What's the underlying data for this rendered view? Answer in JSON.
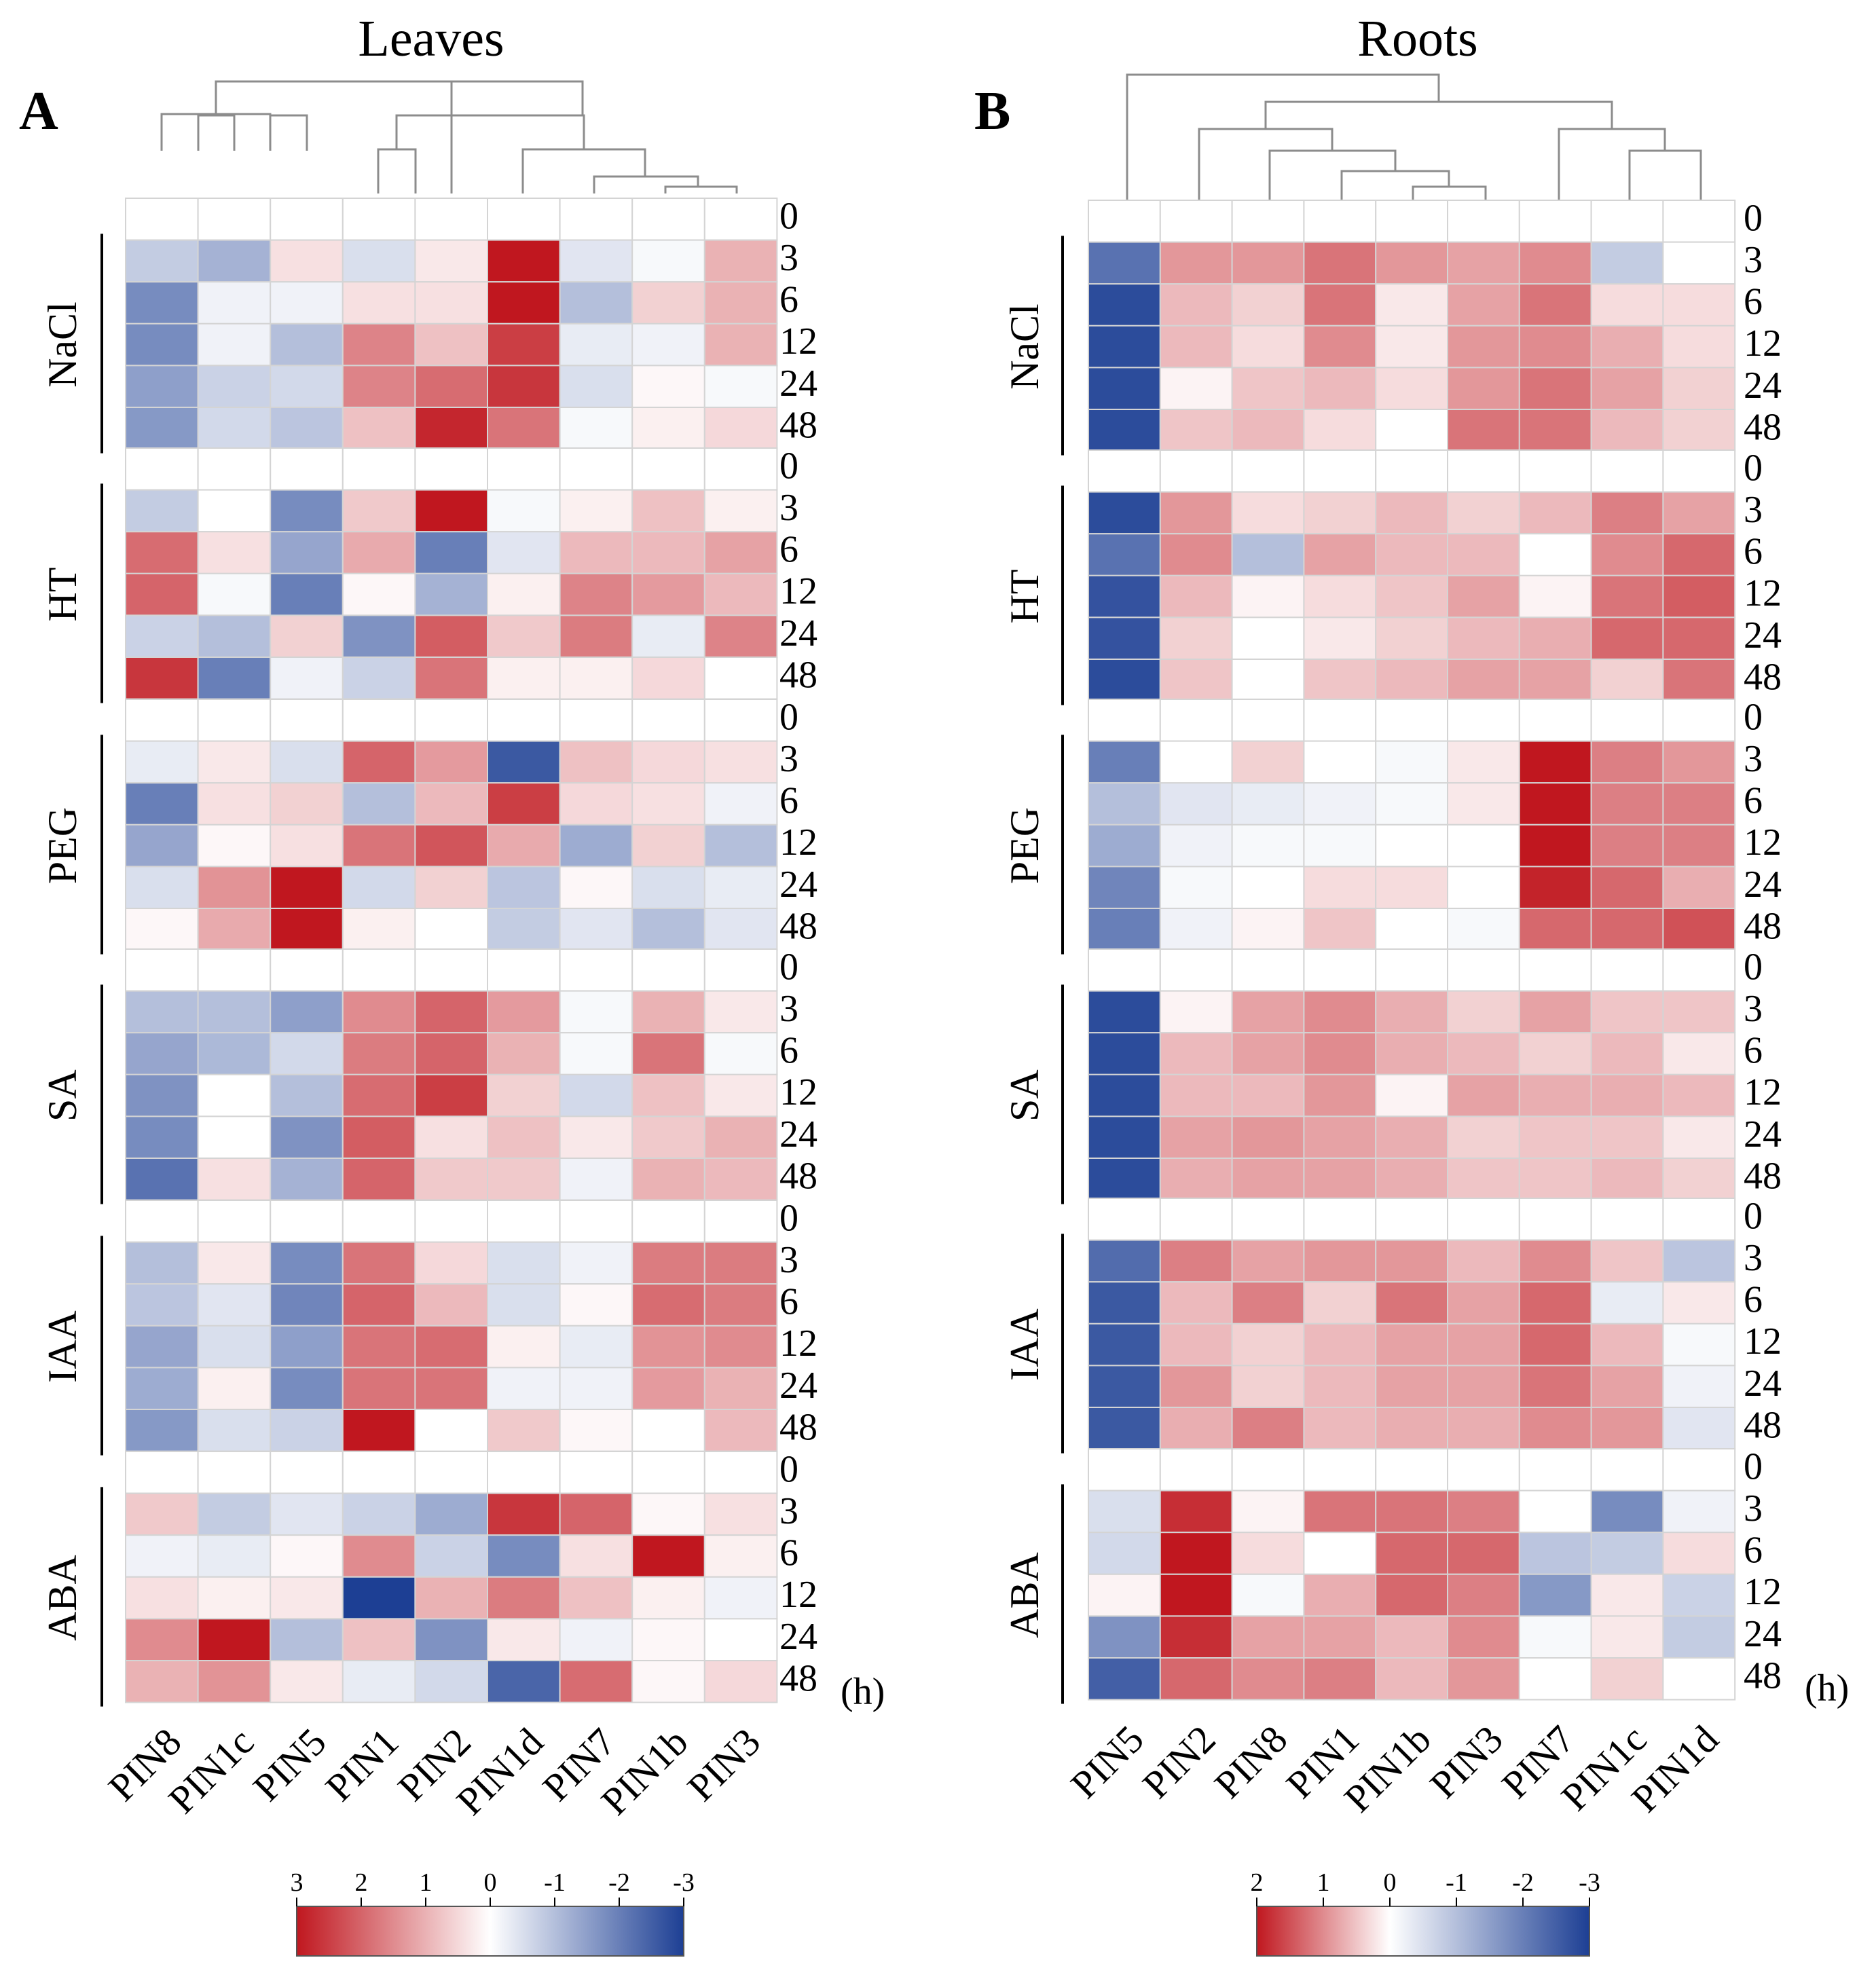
{
  "chart_data": [
    {
      "type": "heatmap",
      "panel_letter": "A",
      "title": "Leaves",
      "columns": [
        "PIN8",
        "PIN1c",
        "PIN5",
        "PIN1",
        "PIN2",
        "PIN1d",
        "PIN7",
        "PIN1b",
        "PIN3"
      ],
      "groups": [
        {
          "name": "NaCl",
          "times": [
            "0",
            "3",
            "6",
            "12",
            "24",
            "48"
          ],
          "values": [
            [
              0,
              0,
              0,
              0,
              0,
              0,
              0,
              0,
              0
            ],
            [
              -0.8,
              -1.2,
              0.4,
              -0.5,
              0.3,
              3,
              -0.4,
              -0.1,
              1
            ],
            [
              -1.8,
              -0.2,
              -0.2,
              0.4,
              0.4,
              3,
              -1.0,
              0.6,
              1
            ],
            [
              -1.8,
              -0.2,
              -1.0,
              1.6,
              0.8,
              2.5,
              -0.3,
              -0.2,
              1
            ],
            [
              -1.5,
              -0.7,
              -0.6,
              1.6,
              1.9,
              2.6,
              -0.5,
              0.1,
              -0.1
            ],
            [
              -1.6,
              -0.6,
              -0.9,
              0.8,
              2.8,
              1.8,
              -0.1,
              0.2,
              0.5
            ]
          ]
        },
        {
          "name": "HT",
          "times": [
            "0",
            "3",
            "6",
            "12",
            "24",
            "48"
          ],
          "values": [
            [
              0,
              0,
              0,
              0,
              0,
              0,
              0,
              0,
              0
            ],
            [
              -0.8,
              0,
              -1.8,
              0.7,
              3,
              -0.1,
              0.2,
              0.8,
              0.2
            ],
            [
              1.9,
              0.4,
              -1.4,
              1.1,
              -2.0,
              -0.4,
              0.9,
              0.9,
              1.2
            ],
            [
              2.0,
              -0.1,
              -2.0,
              0.1,
              -1.2,
              0.2,
              1.6,
              1.3,
              0.9
            ],
            [
              -0.7,
              -1.0,
              0.6,
              -1.7,
              2.1,
              0.7,
              1.7,
              -0.3,
              1.6
            ],
            [
              2.6,
              -2.0,
              -0.2,
              -0.7,
              1.8,
              0.2,
              0.2,
              0.5,
              0
            ]
          ]
        },
        {
          "name": "PEG",
          "times": [
            "0",
            "3",
            "6",
            "12",
            "24",
            "48"
          ],
          "values": [
            [
              0,
              0,
              0,
              0,
              0,
              0,
              0,
              0,
              0
            ],
            [
              -0.3,
              0.3,
              -0.5,
              2.0,
              1.3,
              -2.6,
              0.8,
              0.5,
              0.4
            ],
            [
              -2.0,
              0.4,
              0.6,
              -1.0,
              0.9,
              2.5,
              0.5,
              0.4,
              -0.2
            ],
            [
              -1.4,
              0.1,
              0.4,
              1.8,
              2.2,
              1.1,
              -1.3,
              0.6,
              -1.0
            ],
            [
              -0.5,
              1.4,
              3,
              -0.6,
              0.6,
              -0.9,
              0.1,
              -0.5,
              -0.3
            ],
            [
              0.1,
              1.1,
              3,
              0.2,
              0,
              -0.8,
              -0.4,
              -1.0,
              -0.4
            ]
          ]
        },
        {
          "name": "SA",
          "times": [
            "0",
            "3",
            "6",
            "12",
            "24",
            "48"
          ],
          "values": [
            [
              0,
              0,
              0,
              0,
              0,
              0,
              0,
              0,
              0
            ],
            [
              -1.0,
              -1.0,
              -1.5,
              1.5,
              2.0,
              1.3,
              -0.1,
              1.0,
              0.3
            ],
            [
              -1.4,
              -1.1,
              -0.6,
              1.7,
              2.0,
              1.0,
              -0.1,
              1.8,
              -0.1
            ],
            [
              -1.7,
              0,
              -1.0,
              1.9,
              2.5,
              0.6,
              -0.6,
              0.8,
              0.3
            ],
            [
              -1.8,
              0,
              -1.7,
              2.1,
              0.4,
              0.8,
              0.3,
              0.7,
              1.0
            ],
            [
              -2.2,
              0.4,
              -1.2,
              2.0,
              0.7,
              0.7,
              -0.2,
              1.0,
              0.9
            ]
          ]
        },
        {
          "name": "IAA",
          "times": [
            "0",
            "3",
            "6",
            "12",
            "24",
            "48"
          ],
          "values": [
            [
              0,
              0,
              0,
              0,
              0,
              0,
              0,
              0,
              0
            ],
            [
              -1.0,
              0.3,
              -1.8,
              1.8,
              0.5,
              -0.5,
              -0.2,
              1.7,
              1.7
            ],
            [
              -0.9,
              -0.4,
              -1.9,
              2.0,
              0.9,
              -0.5,
              0.1,
              1.9,
              1.7
            ],
            [
              -1.4,
              -0.5,
              -1.5,
              1.8,
              1.9,
              0.2,
              -0.3,
              1.4,
              1.5
            ],
            [
              -1.3,
              0.2,
              -1.8,
              1.8,
              1.8,
              -0.2,
              -0.2,
              1.3,
              1.0
            ],
            [
              -1.6,
              -0.5,
              -0.7,
              3,
              0,
              0.7,
              0.1,
              0,
              0.9
            ]
          ]
        },
        {
          "name": "ABA",
          "times": [
            "0",
            "3",
            "6",
            "12",
            "24",
            "48"
          ],
          "values": [
            [
              0,
              0,
              0,
              0,
              0,
              0,
              0,
              0,
              0
            ],
            [
              0.7,
              -0.8,
              -0.4,
              -0.7,
              -1.3,
              2.6,
              2.0,
              0.1,
              0.4
            ],
            [
              -0.2,
              -0.3,
              0.1,
              1.5,
              -0.7,
              -1.8,
              0.4,
              3,
              0.2
            ],
            [
              0.4,
              0.2,
              0.3,
              -3,
              1.0,
              1.7,
              0.8,
              0.2,
              -0.2
            ],
            [
              1.5,
              3,
              -1.0,
              0.8,
              -1.7,
              0.3,
              -0.2,
              0.1,
              0
            ],
            [
              1.0,
              1.4,
              0.3,
              -0.3,
              -0.6,
              -2.4,
              1.9,
              0.1,
              0.5
            ]
          ]
        }
      ],
      "time_unit": "(h)",
      "legend": {
        "ticks": [
          "3",
          "2",
          "1",
          "0",
          "-1",
          "-2",
          "-3"
        ],
        "max": 3,
        "min": -3,
        "high_color": "#c0171f",
        "mid_color": "#ffffff",
        "low_color": "#1d3f94"
      }
    },
    {
      "type": "heatmap",
      "panel_letter": "B",
      "title": "Roots",
      "columns": [
        "PIN5",
        "PIN2",
        "PIN8",
        "PIN1",
        "PIN1b",
        "PIN3",
        "PIN7",
        "PIN1c",
        "PIN1d"
      ],
      "groups": [
        {
          "name": "NaCl",
          "times": [
            "0",
            "3",
            "6",
            "12",
            "24",
            "48"
          ],
          "values": [
            [
              0,
              0,
              0,
              0,
              0,
              0,
              0,
              0,
              0
            ],
            [
              -2.2,
              0.9,
              0.9,
              1.2,
              0.9,
              0.8,
              1.0,
              -0.8,
              0
            ],
            [
              -2.8,
              0.6,
              0.4,
              1.2,
              0.2,
              0.8,
              1.2,
              0.3,
              0.3
            ],
            [
              -2.8,
              0.6,
              0.3,
              1.0,
              0.2,
              0.9,
              1.0,
              0.7,
              0.3
            ],
            [
              -2.8,
              0.1,
              0.5,
              0.6,
              0.3,
              0.9,
              1.2,
              0.8,
              0.4
            ],
            [
              -2.8,
              0.5,
              0.6,
              0.3,
              0,
              1.2,
              1.2,
              0.6,
              0.4
            ]
          ]
        },
        {
          "name": "HT",
          "times": [
            "0",
            "3",
            "6",
            "12",
            "24",
            "48"
          ],
          "values": [
            [
              0,
              0,
              0,
              0,
              0,
              0,
              0,
              0,
              0
            ],
            [
              -2.8,
              0.9,
              0.3,
              0.4,
              0.6,
              0.4,
              0.6,
              1.1,
              0.8
            ],
            [
              -2.2,
              1.0,
              -1.0,
              0.8,
              0.6,
              0.6,
              0,
              1.0,
              1.3
            ],
            [
              -2.7,
              0.6,
              0.1,
              0.3,
              0.5,
              0.8,
              0.1,
              1.2,
              1.4
            ],
            [
              -2.7,
              0.4,
              0,
              0.2,
              0.4,
              0.6,
              0.7,
              1.3,
              1.3
            ],
            [
              -2.8,
              0.5,
              0,
              0.5,
              0.6,
              0.8,
              0.8,
              0.4,
              1.2
            ]
          ]
        },
        {
          "name": "PEG",
          "times": [
            "0",
            "3",
            "6",
            "12",
            "24",
            "48"
          ],
          "values": [
            [
              0,
              0,
              0,
              0,
              0,
              0,
              0,
              0,
              0
            ],
            [
              -2.0,
              0,
              0.4,
              0,
              -0.1,
              0.2,
              2,
              1.1,
              0.9
            ],
            [
              -1.0,
              -0.4,
              -0.3,
              -0.2,
              -0.1,
              0.2,
              2,
              1.1,
              1.1
            ],
            [
              -1.3,
              -0.2,
              -0.1,
              -0.1,
              0,
              0,
              2,
              1.1,
              1.1
            ],
            [
              -1.9,
              -0.1,
              0,
              0.3,
              0.3,
              0,
              1.9,
              1.3,
              0.7
            ],
            [
              -2.0,
              -0.2,
              0.1,
              0.5,
              0,
              -0.1,
              1.3,
              1.3,
              1.5
            ]
          ]
        },
        {
          "name": "SA",
          "times": [
            "0",
            "3",
            "6",
            "12",
            "24",
            "48"
          ],
          "values": [
            [
              0,
              0,
              0,
              0,
              0,
              0,
              0,
              0,
              0
            ],
            [
              -2.8,
              0.1,
              0.8,
              1.0,
              0.7,
              0.4,
              0.8,
              0.5,
              0.5
            ],
            [
              -2.8,
              0.6,
              0.8,
              1.0,
              0.7,
              0.6,
              0.4,
              0.6,
              0.2
            ],
            [
              -2.8,
              0.6,
              0.6,
              0.9,
              0.1,
              0.8,
              0.7,
              0.7,
              0.6
            ],
            [
              -2.8,
              0.8,
              0.9,
              0.8,
              0.7,
              0.4,
              0.5,
              0.5,
              0.2
            ],
            [
              -2.8,
              0.7,
              0.8,
              0.8,
              0.7,
              0.5,
              0.5,
              0.6,
              0.4
            ]
          ]
        },
        {
          "name": "IAA",
          "times": [
            "0",
            "3",
            "6",
            "12",
            "24",
            "48"
          ],
          "values": [
            [
              0,
              0,
              0,
              0,
              0,
              0,
              0,
              0,
              0
            ],
            [
              -2.3,
              1.1,
              0.8,
              0.9,
              0.9,
              0.6,
              1.0,
              0.5,
              -0.9
            ],
            [
              -2.6,
              0.6,
              1.1,
              0.4,
              1.2,
              0.8,
              1.3,
              -0.3,
              0.2
            ],
            [
              -2.6,
              0.6,
              0.4,
              0.6,
              0.8,
              0.8,
              1.3,
              0.6,
              -0.1
            ],
            [
              -2.6,
              0.9,
              0.4,
              0.6,
              0.8,
              0.8,
              1.2,
              0.8,
              -0.2
            ],
            [
              -2.6,
              0.7,
              1.1,
              0.6,
              0.7,
              0.7,
              1.0,
              0.9,
              -0.4
            ]
          ]
        },
        {
          "name": "ABA",
          "times": [
            "0",
            "3",
            "6",
            "12",
            "24",
            "48"
          ],
          "values": [
            [
              0,
              0,
              0,
              0,
              0,
              0,
              0,
              0,
              0
            ],
            [
              -0.5,
              1.8,
              0.1,
              1.2,
              1.2,
              1.1,
              0,
              -1.8,
              -0.2
            ],
            [
              -0.6,
              2,
              0.3,
              0,
              1.3,
              1.3,
              -0.9,
              -0.8,
              0.3
            ],
            [
              0.1,
              2,
              -0.1,
              0.7,
              1.3,
              1.1,
              -1.6,
              0.2,
              -0.7
            ],
            [
              -1.7,
              1.8,
              0.8,
              0.8,
              0.6,
              1.0,
              -0.1,
              0.2,
              -0.8
            ],
            [
              -2.5,
              1.3,
              1.0,
              1.1,
              0.6,
              0.9,
              0,
              0.4,
              0
            ]
          ]
        }
      ],
      "time_unit": "(h)",
      "legend": {
        "ticks": [
          "2",
          "1",
          "0",
          "-1",
          "-2",
          "-3"
        ],
        "max": 2,
        "min": -3,
        "high_color": "#c0171f",
        "mid_color": "#ffffff",
        "low_color": "#1d3f94"
      }
    }
  ]
}
